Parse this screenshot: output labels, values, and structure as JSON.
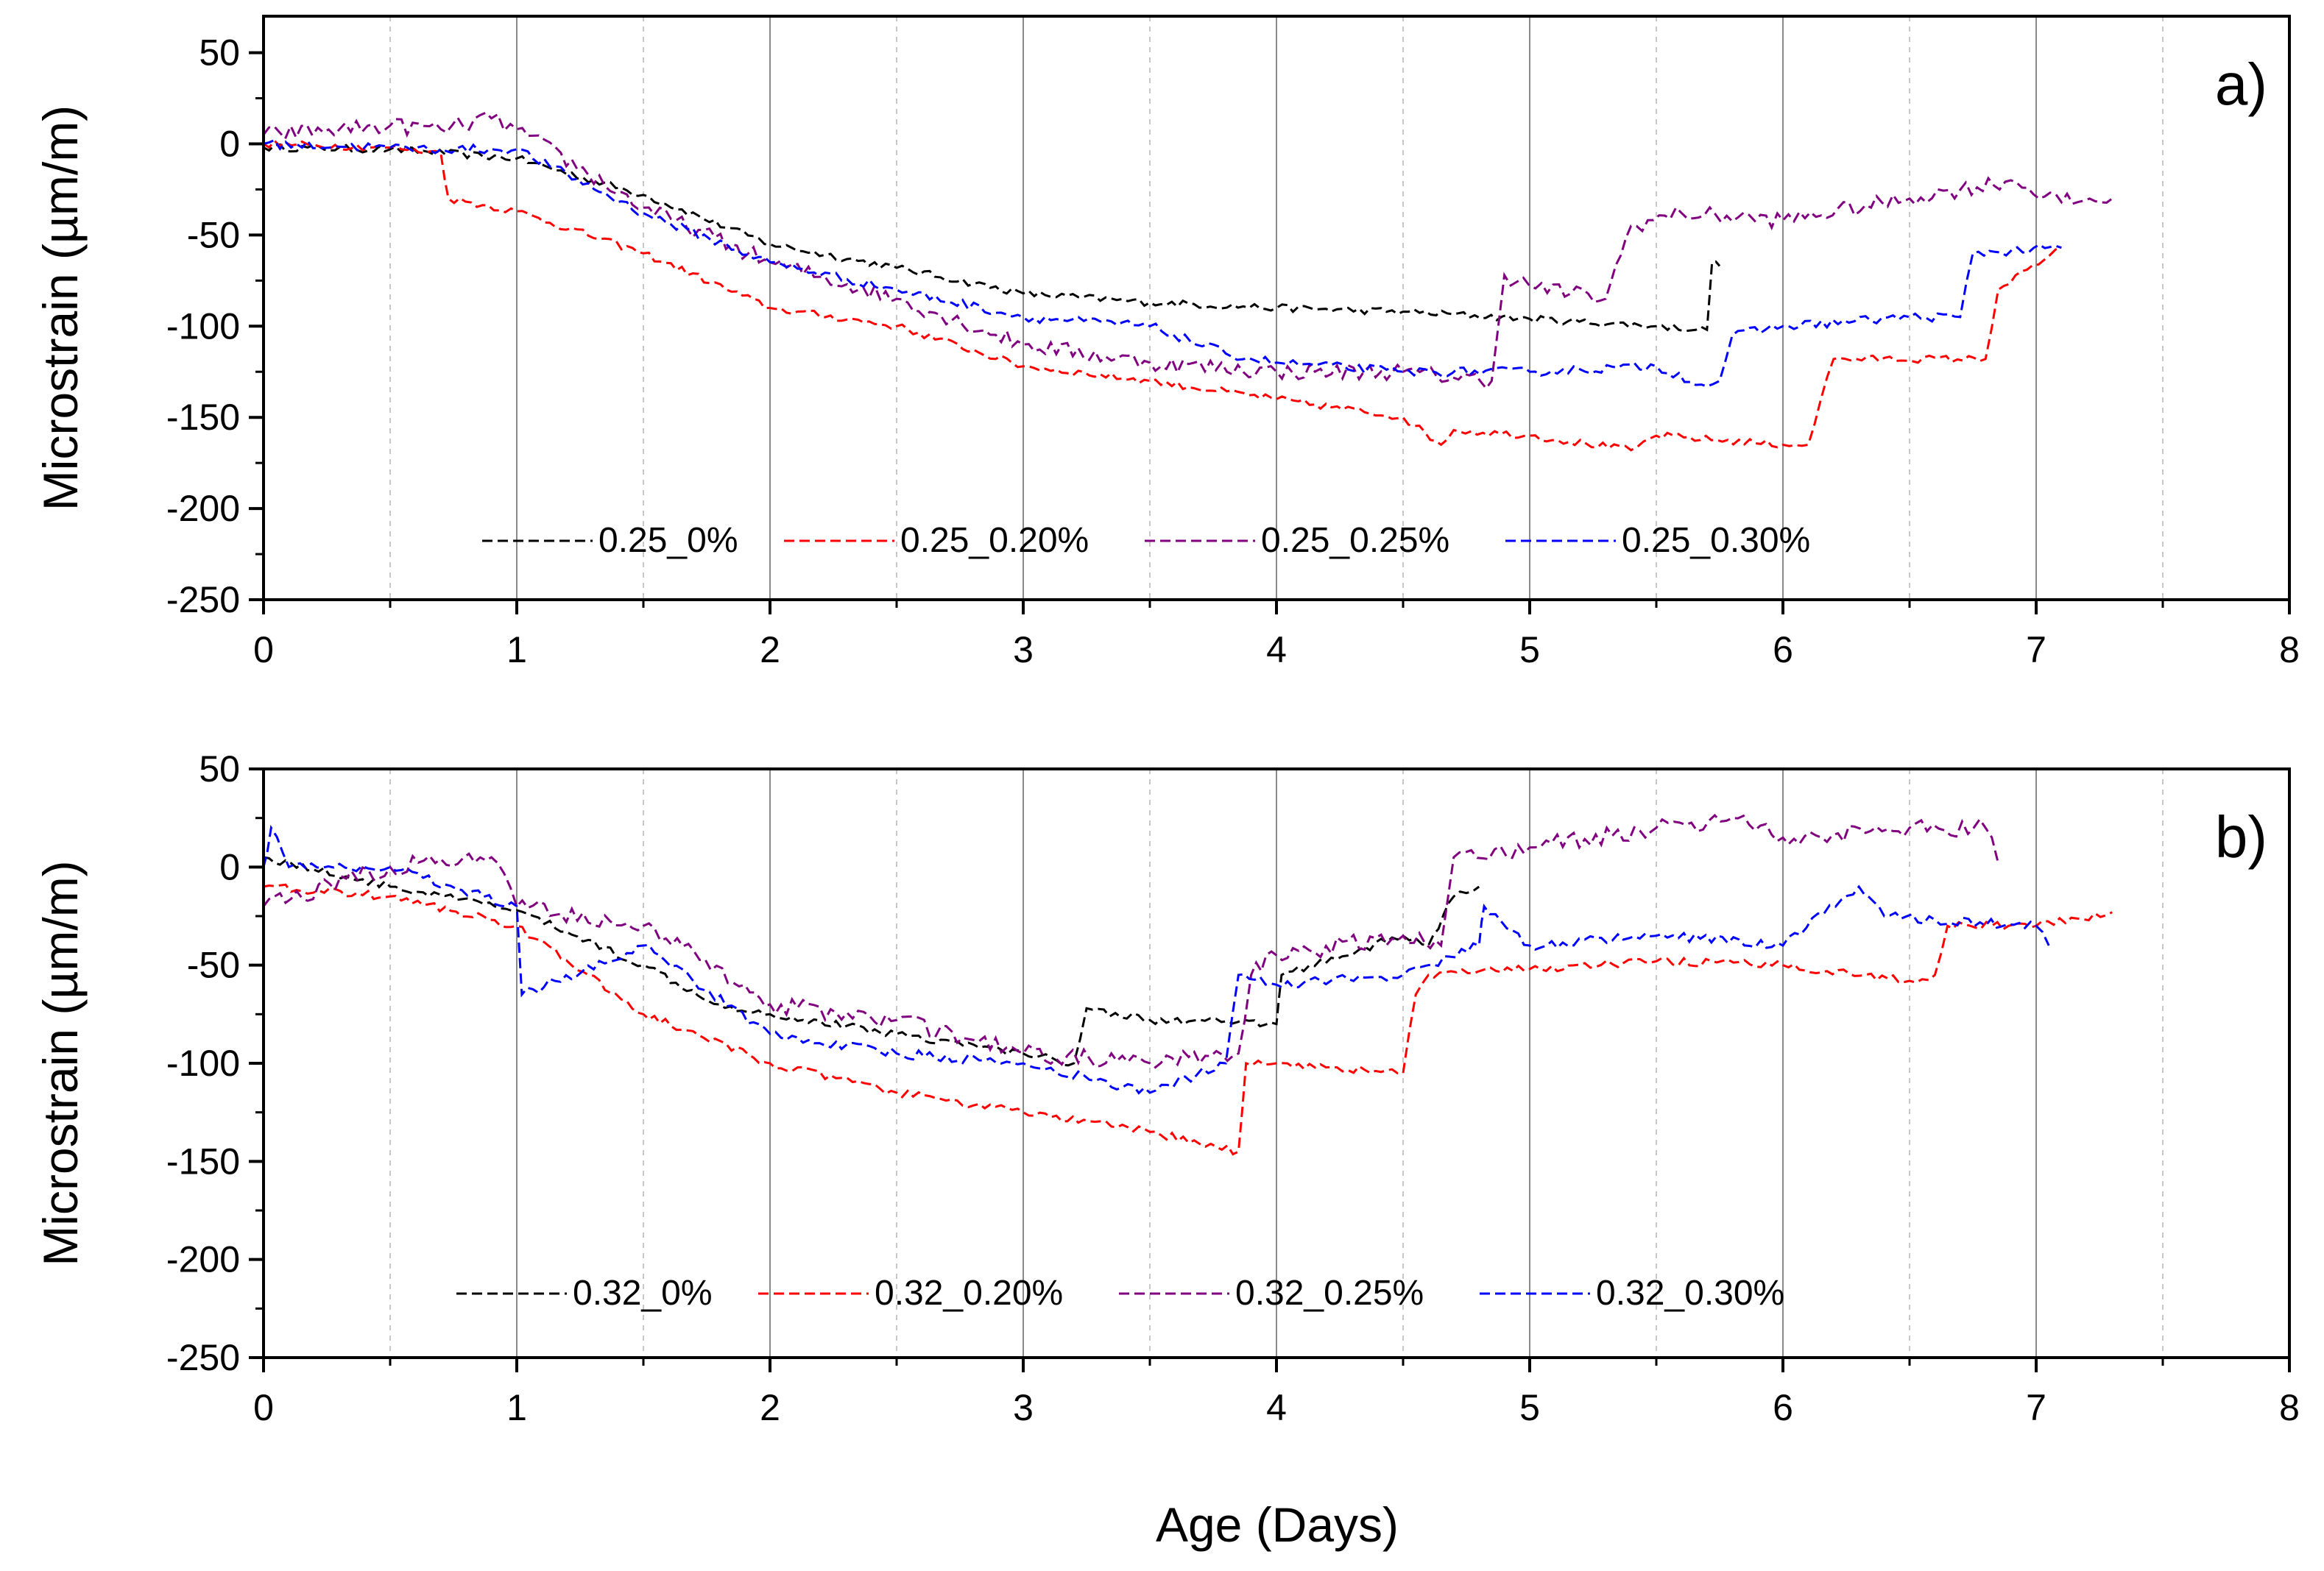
{
  "figure": {
    "xlabel": "Age (Days)"
  },
  "chart_data": [
    {
      "type": "line",
      "panel_label": "a)",
      "title": "",
      "xlabel": "Age (Days)",
      "ylabel": "Microstrain (µm/m)",
      "xlim": [
        0,
        8
      ],
      "ylim": [
        -250,
        70
      ],
      "xticks": [
        0,
        1,
        2,
        3,
        4,
        5,
        6,
        7,
        8
      ],
      "yticks": [
        50,
        0,
        -50,
        -100,
        -150,
        -200,
        -250
      ],
      "grid": {
        "major_x": true,
        "minor_x_dashed": true
      },
      "legend_position": "bottom-center",
      "series": [
        {
          "name": "0.25_0%",
          "color": "#000000",
          "x": [
            0,
            0.5,
            1,
            1.5,
            2,
            2.5,
            3,
            3.5,
            4,
            4.5,
            5,
            5.5,
            5.7,
            5.72,
            5.75
          ],
          "y": [
            -2,
            -3,
            -8,
            -28,
            -55,
            -68,
            -82,
            -87,
            -90,
            -92,
            -96,
            -100,
            -102,
            -65,
            -67
          ]
        },
        {
          "name": "0.25_0.20%",
          "color": "#ff0000",
          "x": [
            0,
            0.5,
            0.7,
            0.73,
            1,
            1.5,
            2,
            2.5,
            3,
            3.5,
            4,
            4.5,
            4.65,
            4.7,
            5,
            5.4,
            5.5,
            6,
            6.1,
            6.15,
            6.2,
            6.8,
            6.85,
            7.1
          ],
          "y": [
            0,
            -2,
            -5,
            -30,
            -37,
            -60,
            -90,
            -100,
            -122,
            -130,
            -140,
            -150,
            -165,
            -157,
            -160,
            -168,
            -160,
            -165,
            -165,
            -140,
            -118,
            -118,
            -80,
            -57
          ]
        },
        {
          "name": "0.25_0.25%",
          "color": "#800080",
          "x": [
            0,
            0.3,
            0.5,
            0.7,
            0.9,
            1,
            1.5,
            2,
            2.5,
            3,
            3.5,
            4,
            4.5,
            4.85,
            4.9,
            5,
            5.3,
            5.4,
            5.6,
            6,
            6.5,
            6.9,
            7.1,
            7.3
          ],
          "y": [
            5,
            8,
            10,
            8,
            14,
            8,
            -35,
            -65,
            -85,
            -110,
            -120,
            -125,
            -125,
            -130,
            -72,
            -78,
            -85,
            -45,
            -38,
            -42,
            -30,
            -20,
            -32,
            -30
          ]
        },
        {
          "name": "0.25_0.30%",
          "color": "#0000ff",
          "x": [
            0,
            0.5,
            0.7,
            1,
            1.5,
            2,
            2.5,
            3,
            3.5,
            3.8,
            4,
            4.5,
            5,
            5.5,
            5.7,
            5.75,
            5.8,
            6,
            6.5,
            6.7,
            6.75,
            7.1
          ],
          "y": [
            0,
            -2,
            -3,
            -3,
            -38,
            -65,
            -80,
            -95,
            -100,
            -115,
            -120,
            -125,
            -125,
            -122,
            -133,
            -130,
            -105,
            -100,
            -95,
            -95,
            -60,
            -57
          ]
        }
      ]
    },
    {
      "type": "line",
      "panel_label": "b)",
      "title": "",
      "xlabel": "Age (Days)",
      "ylabel": "Microstrain (µm/m)",
      "xlim": [
        0,
        8
      ],
      "ylim": [
        -250,
        50
      ],
      "xticks": [
        0,
        1,
        2,
        3,
        4,
        5,
        6,
        7,
        8
      ],
      "yticks": [
        50,
        0,
        -50,
        -100,
        -150,
        -200,
        -250
      ],
      "grid": {
        "major_x": true,
        "minor_x_dashed": true
      },
      "legend_position": "bottom-center",
      "series": [
        {
          "name": "0.32_0%",
          "color": "#000000",
          "x": [
            0,
            0.5,
            1,
            1.5,
            1.8,
            2,
            2.5,
            3,
            3.2,
            3.25,
            3.5,
            4,
            4.02,
            4.5,
            4.6,
            4.7,
            4.8
          ],
          "y": [
            5,
            -10,
            -22,
            -50,
            -70,
            -75,
            -85,
            -95,
            -100,
            -72,
            -78,
            -80,
            -55,
            -35,
            -40,
            -15,
            -10
          ]
        },
        {
          "name": "0.32_0.20%",
          "color": "#ff0000",
          "x": [
            0,
            0.5,
            1,
            1.5,
            2,
            2.5,
            3,
            3.5,
            3.85,
            3.88,
            4,
            4.5,
            4.55,
            4.6,
            5,
            5.5,
            6,
            6.5,
            6.6,
            6.65,
            7,
            7.3
          ],
          "y": [
            -10,
            -15,
            -30,
            -75,
            -100,
            -115,
            -125,
            -135,
            -145,
            -100,
            -100,
            -105,
            -65,
            -55,
            -52,
            -48,
            -50,
            -58,
            -55,
            -30,
            -30,
            -23
          ]
        },
        {
          "name": "0.32_0.25%",
          "color": "#800080",
          "x": [
            0,
            0.5,
            0.9,
            1,
            1.5,
            1.9,
            2,
            2.5,
            3,
            3.5,
            3.85,
            3.9,
            4,
            4.5,
            4.65,
            4.7,
            5,
            5.5,
            5.8,
            6,
            6.5,
            6.8,
            6.85
          ],
          "y": [
            -20,
            0,
            5,
            -20,
            -30,
            -60,
            -70,
            -78,
            -95,
            -100,
            -95,
            -55,
            -45,
            -35,
            -40,
            5,
            10,
            20,
            25,
            15,
            20,
            20,
            2
          ]
        },
        {
          "name": "0.32_0.30%",
          "color": "#0000ff",
          "x": [
            0,
            0.03,
            0.1,
            0.5,
            1,
            1.02,
            1.5,
            2,
            2.5,
            3,
            3.5,
            3.8,
            3.85,
            4,
            4.5,
            4.8,
            4.82,
            5,
            5.5,
            6,
            6.3,
            6.4,
            7,
            7.05
          ],
          "y": [
            0,
            20,
            0,
            0,
            -20,
            -65,
            -40,
            -85,
            -95,
            -100,
            -115,
            -100,
            -55,
            -60,
            -55,
            -40,
            -20,
            -40,
            -35,
            -40,
            -10,
            -25,
            -30,
            -40
          ]
        }
      ]
    }
  ]
}
